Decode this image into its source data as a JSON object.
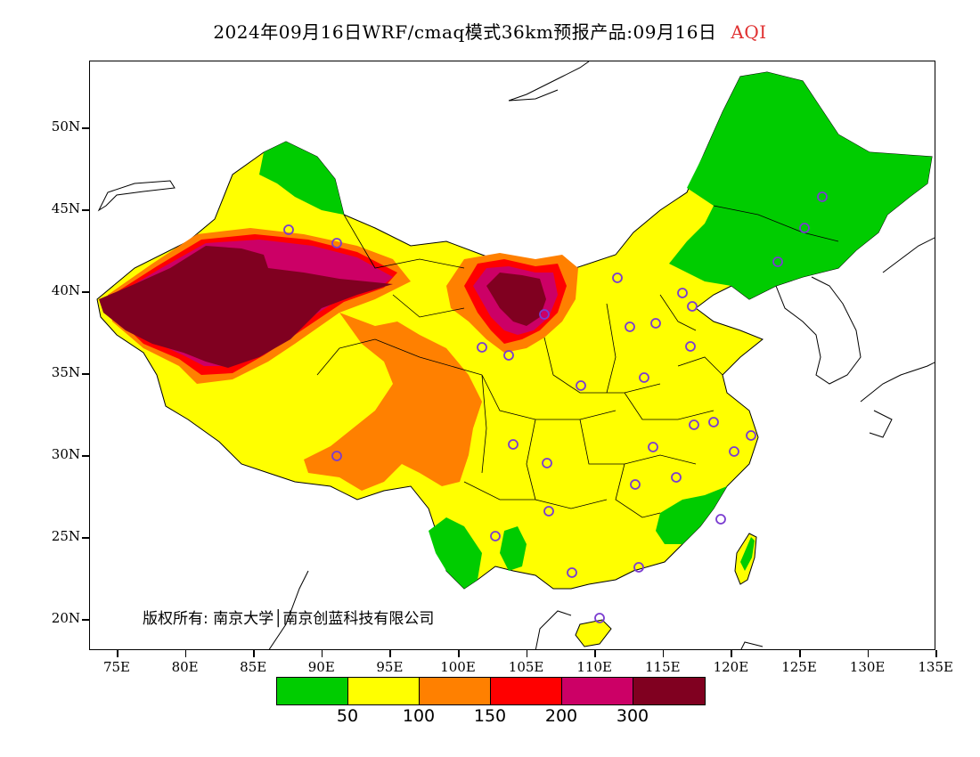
{
  "title": {
    "text": "2024年09月16日WRF/cmaq模式36km预报产品:09月16日",
    "variable": "AQI",
    "variable_color": "#e03030"
  },
  "map": {
    "projection": "lat-lon",
    "lon_range": [
      73.2,
      135
    ],
    "lat_range": [
      18,
      54
    ],
    "y_ticks": [
      "50N",
      "45N",
      "40N",
      "35N",
      "30N",
      "25N",
      "20N"
    ],
    "x_ticks": [
      "75E",
      "80E",
      "85E",
      "90E",
      "95E",
      "100E",
      "105E",
      "110E",
      "115E",
      "120E",
      "125E",
      "130E",
      "135E"
    ],
    "copyright": "版权所有: 南京大学│南京创蓝科技有限公司"
  },
  "legend": {
    "colors": [
      "#00cc00",
      "#ffff00",
      "#ff8000",
      "#ff0000",
      "#cc0066",
      "#800020"
    ],
    "labels": [
      "50",
      "100",
      "150",
      "200",
      "300"
    ]
  },
  "icons": {
    "station_marker": "circle-icon"
  }
}
